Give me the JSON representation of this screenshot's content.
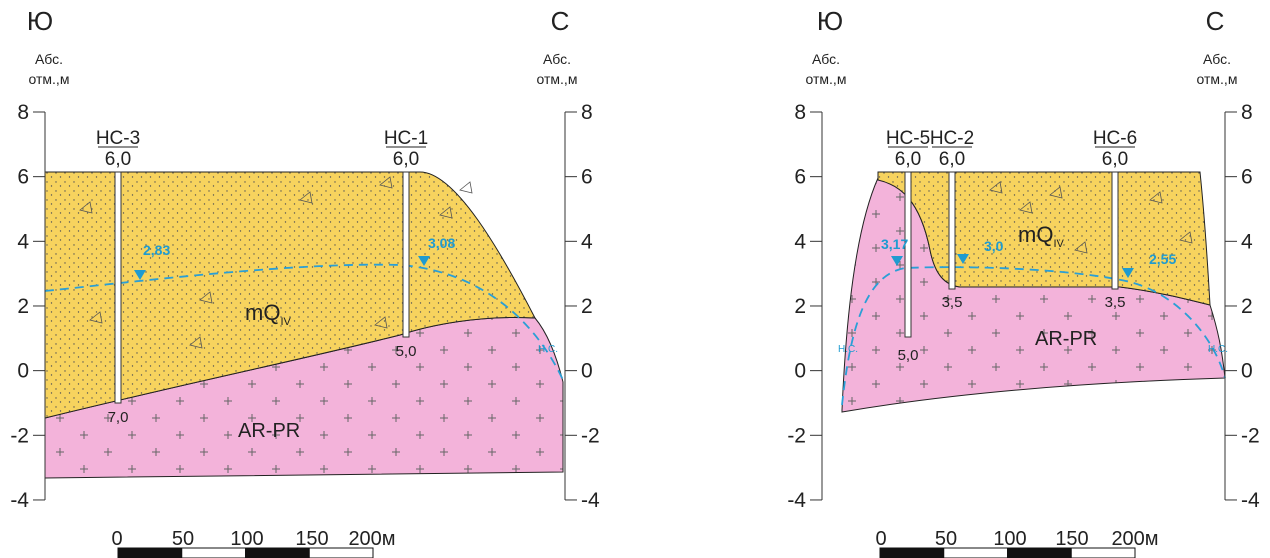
{
  "sections": [
    {
      "direction_left": "Ю",
      "direction_right": "С",
      "axis_label": [
        "Абс.",
        "отм.,м"
      ],
      "yticks": [
        8,
        6,
        4,
        2,
        0,
        -2,
        -4
      ],
      "wells": [
        {
          "name": "НС-3",
          "top": "6,0",
          "bottom": "7,0"
        },
        {
          "name": "НС-1",
          "top": "6,0",
          "bottom": "5,0"
        }
      ],
      "water_levels": [
        "2,83",
        "3,08"
      ],
      "water_source_label": "Н.С.",
      "layer_upper": {
        "symbol": "mQ",
        "subscript": "IV"
      },
      "layer_lower": "AR-PR",
      "scale_labels": [
        "0",
        "50",
        "100",
        "150",
        "200м"
      ]
    },
    {
      "direction_left": "Ю",
      "direction_right": "С",
      "axis_label": [
        "Абс.",
        "отм.,м"
      ],
      "yticks": [
        8,
        6,
        4,
        2,
        0,
        -2,
        -4
      ],
      "wells": [
        {
          "name": "НС-5",
          "top": "6,0",
          "bottom": "5,0"
        },
        {
          "name": "НС-2",
          "top": "6,0",
          "bottom": "3,5"
        },
        {
          "name": "НС-6",
          "top": "6,0",
          "bottom": "3,5"
        }
      ],
      "water_levels": [
        "3,17",
        "3,0",
        "2,55"
      ],
      "water_source_label": "Н.С.",
      "layer_upper": {
        "symbol": "mQ",
        "subscript": "IV"
      },
      "layer_lower": "AR-PR",
      "scale_labels": [
        "0",
        "50",
        "100",
        "150",
        "200м"
      ]
    }
  ]
}
